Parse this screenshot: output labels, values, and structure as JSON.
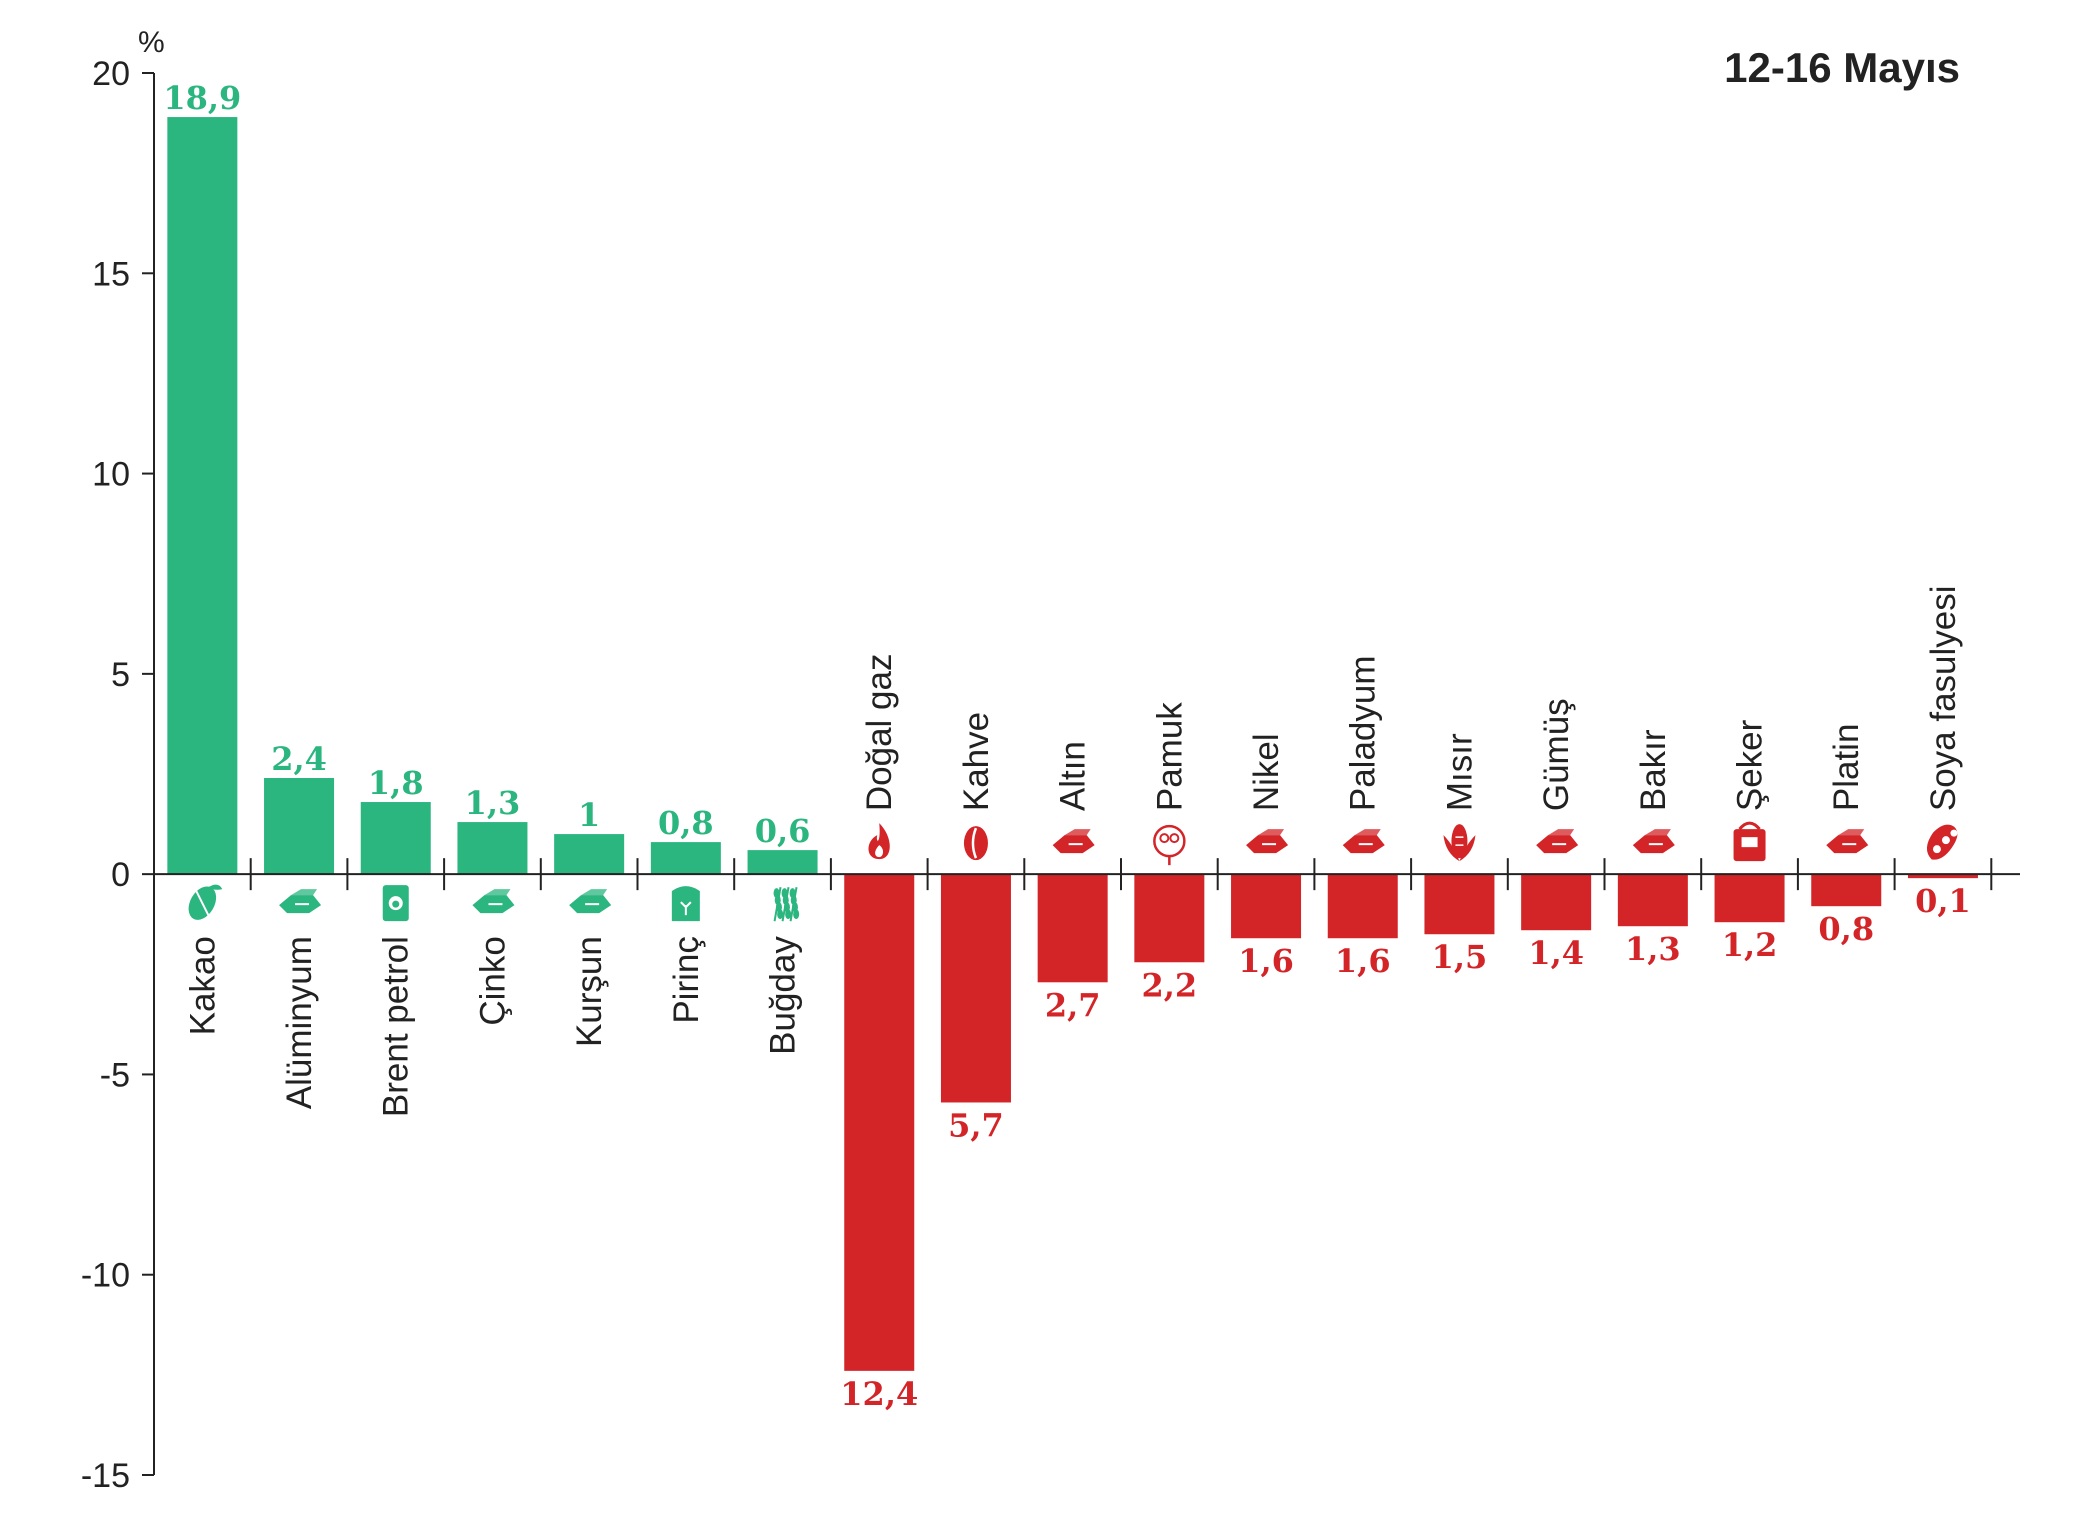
{
  "chart_data": {
    "type": "bar",
    "title": "12-16 Mayıs",
    "ylabel": "%",
    "ylim": [
      -15,
      20
    ],
    "yticks": [
      20,
      15,
      10,
      5,
      0,
      -5,
      -10,
      -15
    ],
    "grid": false,
    "colors": {
      "positive": "#2bb57f",
      "negative": "#d32428"
    },
    "categories": [
      "Kakao",
      "Alüminyum",
      "Brent petrol",
      "Çinko",
      "Kurşun",
      "Pirinç",
      "Buğday",
      "Doğal gaz",
      "Kahve",
      "Altın",
      "Pamuk",
      "Nikel",
      "Paladyum",
      "Mısır",
      "Gümüş",
      "Bakır",
      "Şeker",
      "Platin",
      "Soya fasulyesi"
    ],
    "values": [
      18.9,
      2.4,
      1.8,
      1.3,
      1,
      0.8,
      0.6,
      -12.4,
      -5.7,
      -2.7,
      -2.2,
      -1.6,
      -1.6,
      -1.5,
      -1.4,
      -1.3,
      -1.2,
      -0.8,
      -0.1
    ],
    "value_labels": [
      "18,9",
      "2,4",
      "1,8",
      "1,3",
      "1",
      "0,8",
      "0,6",
      "12,4",
      "5,7",
      "2,7",
      "2,2",
      "1,6",
      "1,6",
      "1,5",
      "1,4",
      "1,3",
      "1,2",
      "0,8",
      "0,1"
    ],
    "icons": [
      "cocoa-pod-icon",
      "metal-ingot-icon",
      "oil-barrel-icon",
      "metal-ingot-icon",
      "metal-ingot-icon",
      "rice-sack-icon",
      "wheat-icon",
      "gas-flame-icon",
      "coffee-bean-icon",
      "metal-ingot-icon",
      "cotton-icon",
      "metal-ingot-icon",
      "metal-ingot-icon",
      "corn-icon",
      "metal-ingot-icon",
      "metal-ingot-icon",
      "sugar-sack-icon",
      "metal-ingot-icon",
      "soybean-icon"
    ]
  }
}
